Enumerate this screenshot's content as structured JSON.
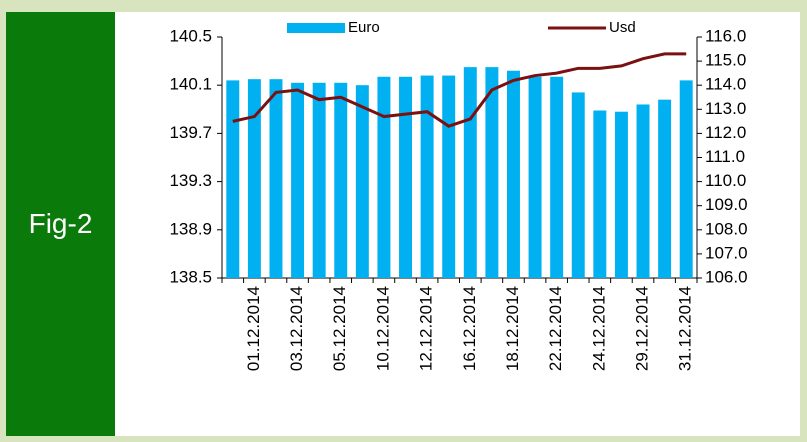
{
  "figure_label": "Fig-2",
  "chart_data": {
    "type": "bar-line",
    "categories": [
      null,
      "01.12.2014",
      null,
      "03.12.2014",
      null,
      "05.12.2014",
      null,
      "10.12.2014",
      null,
      "12.12.2014",
      null,
      "16.12.2014",
      null,
      "18.12.2014",
      null,
      "22.12.2014",
      null,
      "24.12.2014",
      null,
      "29.12.2014",
      null,
      "31.12.2014"
    ],
    "series": [
      {
        "name": "Euro",
        "type": "bar",
        "color": "#00b0f0",
        "values": [
          140.14,
          140.15,
          140.15,
          140.12,
          140.12,
          140.12,
          140.1,
          140.17,
          140.17,
          140.18,
          140.18,
          140.25,
          140.25,
          140.22,
          140.17,
          140.17,
          140.04,
          139.89,
          139.88,
          139.94,
          139.98,
          140.14
        ]
      },
      {
        "name": "Usd",
        "type": "line",
        "axis": "y2",
        "color": "#7b1010",
        "values": [
          112.5,
          112.7,
          113.7,
          113.8,
          113.4,
          113.5,
          113.1,
          112.7,
          112.8,
          112.9,
          112.3,
          112.6,
          113.8,
          114.2,
          114.4,
          114.5,
          114.7,
          114.7,
          114.8,
          115.1,
          115.3,
          115.3
        ]
      }
    ],
    "ylim": [
      138.5,
      140.5
    ],
    "yticks": [
      138.5,
      138.9,
      139.3,
      139.7,
      140.1,
      140.5
    ],
    "y2lim": [
      106,
      116
    ],
    "y2ticks": [
      {
        "value": 106,
        "label": "106.0"
      },
      {
        "value": 107,
        "label": "107.0"
      },
      {
        "value": 108,
        "label": "108.0"
      },
      {
        "value": 109,
        "label": "109.0"
      },
      {
        "value": 110,
        "label": "110.0"
      },
      {
        "value": 111,
        "label": "111.0"
      },
      {
        "value": 112,
        "label": "112.0"
      },
      {
        "value": 113,
        "label": "113.0"
      },
      {
        "value": 114,
        "label": "114.0"
      },
      {
        "value": 115,
        "label": "115.0"
      },
      {
        "value": 116,
        "label": "116.0"
      }
    ]
  }
}
